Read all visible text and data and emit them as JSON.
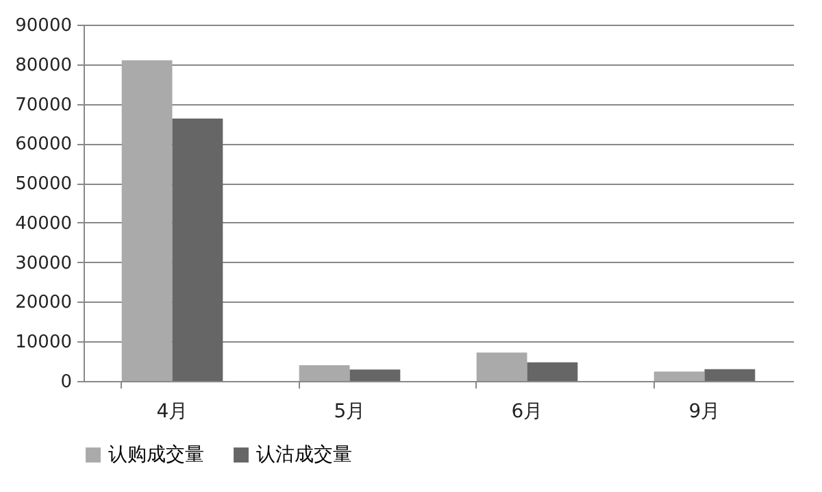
{
  "chart_data": {
    "type": "bar",
    "categories": [
      "4月",
      "5月",
      "6月",
      "9月"
    ],
    "series": [
      {
        "name": "认购成交量",
        "color": "#aaaaaa",
        "values": [
          81000,
          4000,
          7200,
          2400
        ]
      },
      {
        "name": "认沽成交量",
        "color": "#666666",
        "values": [
          66300,
          2900,
          4700,
          3000
        ]
      }
    ],
    "ylim": [
      0,
      90000
    ],
    "yticks": [
      0,
      10000,
      20000,
      30000,
      40000,
      50000,
      60000,
      70000,
      80000,
      90000
    ],
    "grid": "y",
    "legend": "bottom"
  }
}
